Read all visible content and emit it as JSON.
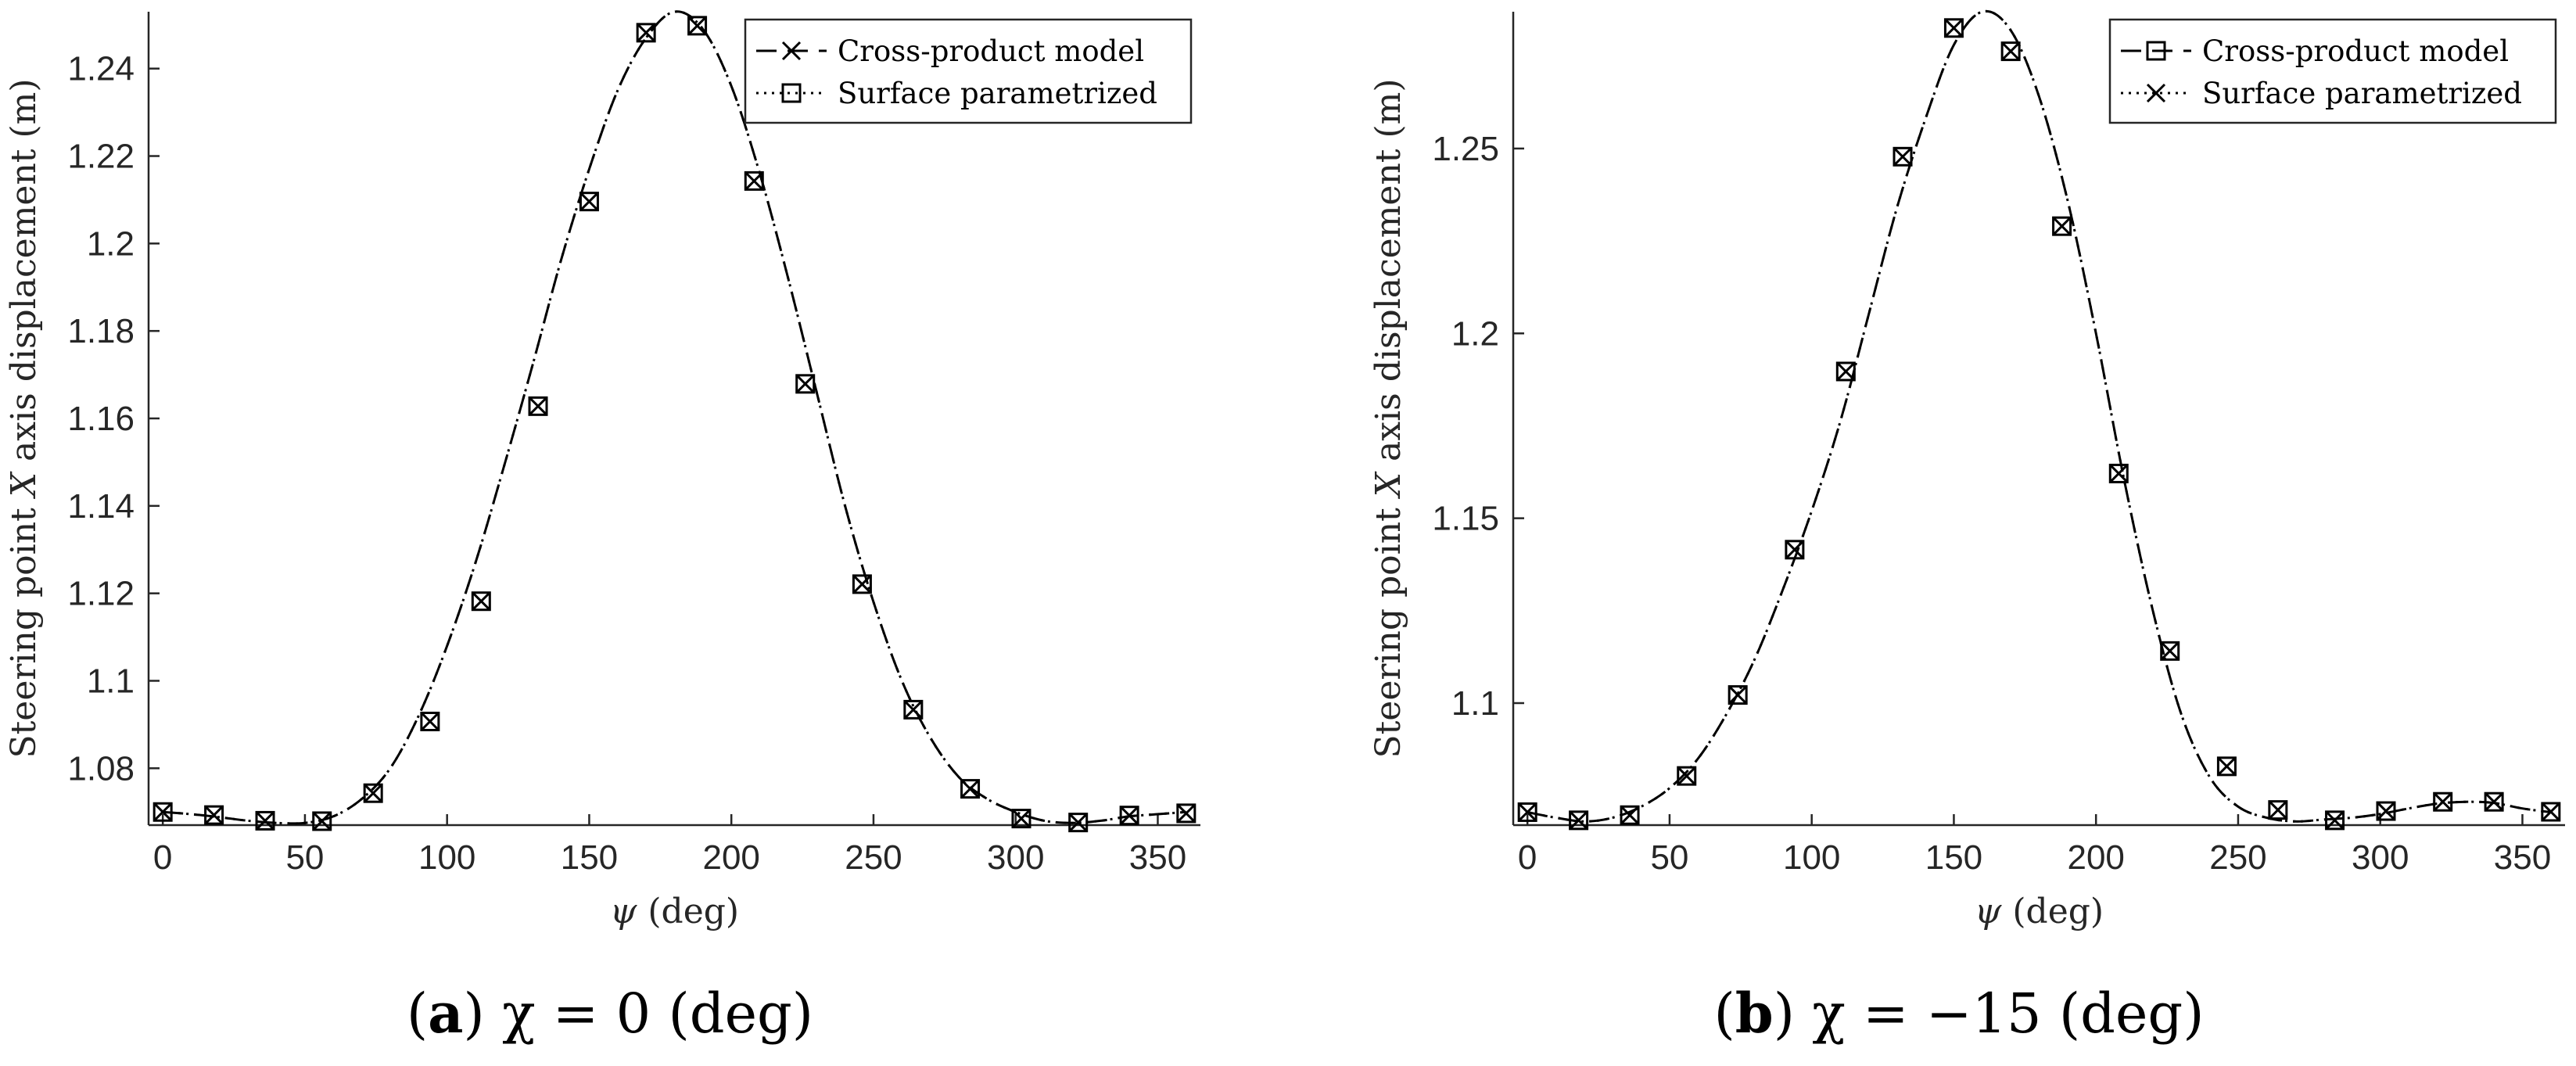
{
  "chart_data": [
    {
      "type": "line",
      "caption_tag": "(a)",
      "caption_expr": "χ = 0 (deg)",
      "xlabel_symbol": "ψ",
      "xlabel_unit": "(deg)",
      "ylabel_prefix": "Steering point",
      "ylabel_symbol": "X",
      "ylabel_suffix": "axis displacement (m)",
      "xlim": [
        -5,
        365
      ],
      "ylim": [
        1.067,
        1.253
      ],
      "xticks": [
        0,
        50,
        100,
        150,
        200,
        250,
        300,
        350
      ],
      "yticks": [
        1.08,
        1.1,
        1.12,
        1.14,
        1.16,
        1.18,
        1.2,
        1.22,
        1.24
      ],
      "ytick_labels": [
        "1.08",
        "1.1",
        "1.12",
        "1.14",
        "1.16",
        "1.18",
        "1.2",
        "1.22",
        "1.24"
      ],
      "legend_position": "top-right",
      "series": [
        {
          "name": "Cross-product model",
          "line": "dashed",
          "marker": "x",
          "x": [
            0,
            10,
            20,
            30,
            40,
            50,
            60,
            70,
            80,
            90,
            100,
            110,
            120,
            130,
            140,
            150,
            160,
            170,
            180,
            190,
            200,
            210,
            220,
            230,
            240,
            250,
            260,
            270,
            280,
            290,
            300,
            310,
            320,
            330,
            340,
            350,
            360
          ],
          "y": [
            1.07,
            1.0695,
            1.0688,
            1.068,
            1.0675,
            1.0675,
            1.069,
            1.073,
            1.08,
            1.092,
            1.108,
            1.127,
            1.149,
            1.172,
            1.196,
            1.217,
            1.235,
            1.247,
            1.253,
            1.249,
            1.236,
            1.216,
            1.192,
            1.166,
            1.14,
            1.118,
            1.1,
            1.087,
            1.078,
            1.073,
            1.07,
            1.068,
            1.0675,
            1.068,
            1.069,
            1.0695,
            1.07
          ],
          "marker_x": [
            0,
            18,
            36,
            56,
            74,
            94,
            112,
            132,
            150,
            170,
            188,
            208,
            226,
            246,
            264,
            284,
            302,
            322,
            340,
            360
          ],
          "marker_y": [
            1.07,
            1.0693,
            1.068,
            1.0679,
            1.0743,
            1.0907,
            1.1182,
            1.1628,
            1.2096,
            1.2482,
            1.2498,
            1.2143,
            1.1679,
            1.1221,
            1.0934,
            1.0753,
            1.0685,
            1.0676,
            1.0692,
            1.0697
          ]
        },
        {
          "name": "Surface parametrized",
          "line": "dotted",
          "marker": "square",
          "x": [
            0,
            10,
            20,
            30,
            40,
            50,
            60,
            70,
            80,
            90,
            100,
            110,
            120,
            130,
            140,
            150,
            160,
            170,
            180,
            190,
            200,
            210,
            220,
            230,
            240,
            250,
            260,
            270,
            280,
            290,
            300,
            310,
            320,
            330,
            340,
            350,
            360
          ],
          "y": [
            1.07,
            1.0695,
            1.0688,
            1.068,
            1.0675,
            1.0675,
            1.069,
            1.073,
            1.08,
            1.092,
            1.108,
            1.127,
            1.149,
            1.172,
            1.196,
            1.217,
            1.235,
            1.247,
            1.253,
            1.249,
            1.236,
            1.216,
            1.192,
            1.166,
            1.14,
            1.118,
            1.1,
            1.087,
            1.078,
            1.073,
            1.07,
            1.068,
            1.0675,
            1.068,
            1.069,
            1.0695,
            1.07
          ],
          "marker_x": [
            0,
            18,
            36,
            56,
            74,
            94,
            112,
            132,
            150,
            170,
            188,
            208,
            226,
            246,
            264,
            284,
            302,
            322,
            340,
            360
          ],
          "marker_y": [
            1.07,
            1.0693,
            1.068,
            1.0679,
            1.0743,
            1.0907,
            1.1182,
            1.1628,
            1.2096,
            1.2482,
            1.2498,
            1.2143,
            1.1679,
            1.1221,
            1.0934,
            1.0753,
            1.0685,
            1.0676,
            1.0692,
            1.0697
          ]
        }
      ]
    },
    {
      "type": "line",
      "caption_tag": "(b)",
      "caption_expr": "χ = −15 (deg)",
      "xlabel_symbol": "ψ",
      "xlabel_unit": "(deg)",
      "ylabel_prefix": "Steering point",
      "ylabel_symbol": "X",
      "ylabel_suffix": "axis displacement (m)",
      "xlim": [
        -5,
        365
      ],
      "ylim": [
        1.067,
        1.287
      ],
      "xticks": [
        0,
        50,
        100,
        150,
        200,
        250,
        300,
        350
      ],
      "yticks": [
        1.1,
        1.15,
        1.2,
        1.25
      ],
      "ytick_labels": [
        "1.1",
        "1.15",
        "1.2",
        "1.25"
      ],
      "legend_position": "top-right",
      "series": [
        {
          "name": "Cross-product model",
          "line": "dashed",
          "marker": "square",
          "x": [
            0,
            10,
            20,
            30,
            40,
            50,
            60,
            70,
            80,
            90,
            100,
            110,
            120,
            130,
            140,
            150,
            160,
            170,
            180,
            190,
            200,
            210,
            220,
            230,
            240,
            250,
            260,
            270,
            280,
            290,
            300,
            310,
            320,
            330,
            340,
            350,
            360
          ],
          "y": [
            1.0705,
            1.069,
            1.068,
            1.069,
            1.072,
            1.077,
            1.085,
            1.097,
            1.112,
            1.131,
            1.152,
            1.176,
            1.205,
            1.234,
            1.258,
            1.278,
            1.287,
            1.282,
            1.264,
            1.236,
            1.2,
            1.16,
            1.125,
            1.097,
            1.08,
            1.072,
            1.069,
            1.068,
            1.0685,
            1.069,
            1.07,
            1.0715,
            1.0728,
            1.0733,
            1.073,
            1.0715,
            1.0705
          ],
          "marker_x": [
            0,
            18,
            36,
            56,
            74,
            94,
            112,
            132,
            150,
            170,
            188,
            208,
            226,
            246,
            264,
            284,
            302,
            322,
            340,
            360
          ],
          "marker_y": [
            1.0705,
            1.0683,
            1.0697,
            1.0803,
            1.1022,
            1.1415,
            1.1897,
            1.2478,
            1.2826,
            1.2763,
            1.229,
            1.1621,
            1.1141,
            1.0829,
            1.0711,
            1.0683,
            1.0708,
            1.0733,
            1.0733,
            1.0706
          ]
        },
        {
          "name": "Surface parametrized",
          "line": "dotted",
          "marker": "x",
          "x": [
            0,
            10,
            20,
            30,
            40,
            50,
            60,
            70,
            80,
            90,
            100,
            110,
            120,
            130,
            140,
            150,
            160,
            170,
            180,
            190,
            200,
            210,
            220,
            230,
            240,
            250,
            260,
            270,
            280,
            290,
            300,
            310,
            320,
            330,
            340,
            350,
            360
          ],
          "y": [
            1.0705,
            1.069,
            1.068,
            1.069,
            1.072,
            1.077,
            1.085,
            1.097,
            1.112,
            1.131,
            1.152,
            1.176,
            1.205,
            1.234,
            1.258,
            1.278,
            1.287,
            1.282,
            1.264,
            1.236,
            1.2,
            1.16,
            1.125,
            1.097,
            1.08,
            1.072,
            1.069,
            1.068,
            1.0685,
            1.069,
            1.07,
            1.0715,
            1.0728,
            1.0733,
            1.073,
            1.0715,
            1.0705
          ],
          "marker_x": [
            0,
            18,
            36,
            56,
            74,
            94,
            112,
            132,
            150,
            170,
            188,
            208,
            226,
            246,
            264,
            284,
            302,
            322,
            340,
            360
          ],
          "marker_y": [
            1.0705,
            1.0683,
            1.0697,
            1.0803,
            1.1022,
            1.1415,
            1.1897,
            1.2478,
            1.2826,
            1.2763,
            1.229,
            1.1621,
            1.1141,
            1.0829,
            1.0711,
            1.0683,
            1.0708,
            1.0733,
            1.0733,
            1.0706
          ]
        }
      ]
    }
  ]
}
